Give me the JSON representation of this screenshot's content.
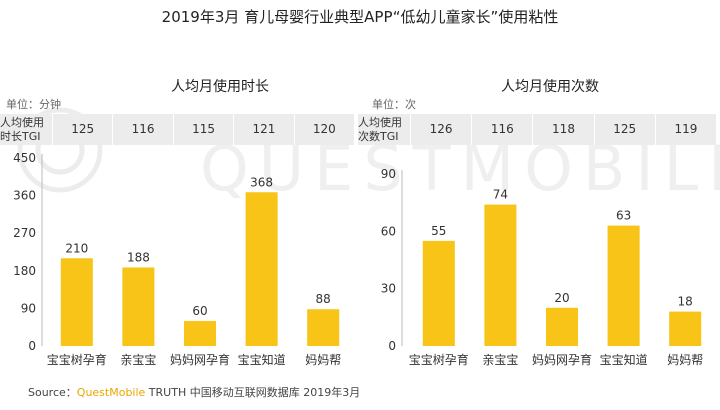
{
  "title": "2019年3月 育儿母婴行业典型APP“低幼儿童家长”使用粘性",
  "watermark": "QUESTMOBILE",
  "colors": {
    "bar": "#f7c417",
    "tgi_bg": "#ececec",
    "brand": "#e8a800"
  },
  "source": {
    "prefix": "Source：",
    "brand": "QuestMobile",
    "rest": " TRUTH 中国移动互联网数据库 2019年3月"
  },
  "chart_data": [
    {
      "type": "bar",
      "title": "人均月使用时长",
      "unit": "单位：分钟",
      "tgi_label": "人均使用时长TGI",
      "tgi": [
        125,
        116,
        115,
        121,
        120
      ],
      "categories": [
        "宝宝树孕育",
        "亲宝宝",
        "妈妈网孕育",
        "宝宝知道",
        "妈妈帮"
      ],
      "values": [
        210,
        188,
        60,
        368,
        88
      ],
      "yticks": [
        0,
        90,
        180,
        270,
        360,
        450
      ],
      "ylim": [
        0,
        450
      ]
    },
    {
      "type": "bar",
      "title": "人均月使用次数",
      "unit": "单位：次",
      "tgi_label": "人均使用次数TGI",
      "tgi": [
        126,
        116,
        118,
        125,
        119
      ],
      "categories": [
        "宝宝树孕育",
        "亲宝宝",
        "妈妈网孕育",
        "宝宝知道",
        "妈妈帮"
      ],
      "values": [
        55,
        74,
        20,
        63,
        18
      ],
      "yticks": [
        0,
        30,
        60,
        90
      ],
      "ylim": [
        0,
        90
      ]
    }
  ]
}
